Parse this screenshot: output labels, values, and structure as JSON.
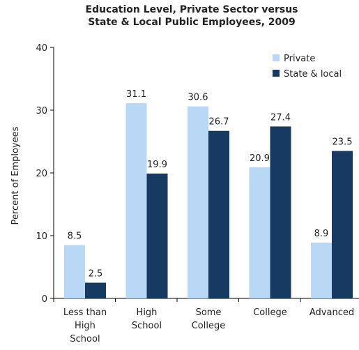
{
  "chart_data": {
    "type": "bar",
    "title_lines": [
      "Education Level, Private Sector versus",
      "State & Local Public Employees, 2009"
    ],
    "xlabel": "",
    "ylabel": "Percent of Employees",
    "ylim": [
      0,
      40
    ],
    "yticks": [
      0,
      10,
      20,
      30,
      40
    ],
    "grid": false,
    "legend_position": "top-right",
    "categories": [
      [
        "Less than",
        "High",
        "School"
      ],
      [
        "High",
        "School"
      ],
      [
        "Some",
        "College"
      ],
      [
        "College"
      ],
      [
        "Advanced"
      ]
    ],
    "series": [
      {
        "name": "Private",
        "color": "#b8d8f5",
        "values": [
          8.5,
          31.1,
          30.6,
          20.9,
          8.9
        ]
      },
      {
        "name": "State & local",
        "color": "#173a63",
        "values": [
          2.5,
          19.9,
          26.7,
          27.4,
          23.5
        ]
      }
    ],
    "value_labels": [
      [
        "8.5",
        "31.1",
        "30.6",
        "20.9",
        "8.9"
      ],
      [
        "2.5",
        "19.9",
        "26.7",
        "27.4",
        "23.5"
      ]
    ]
  }
}
